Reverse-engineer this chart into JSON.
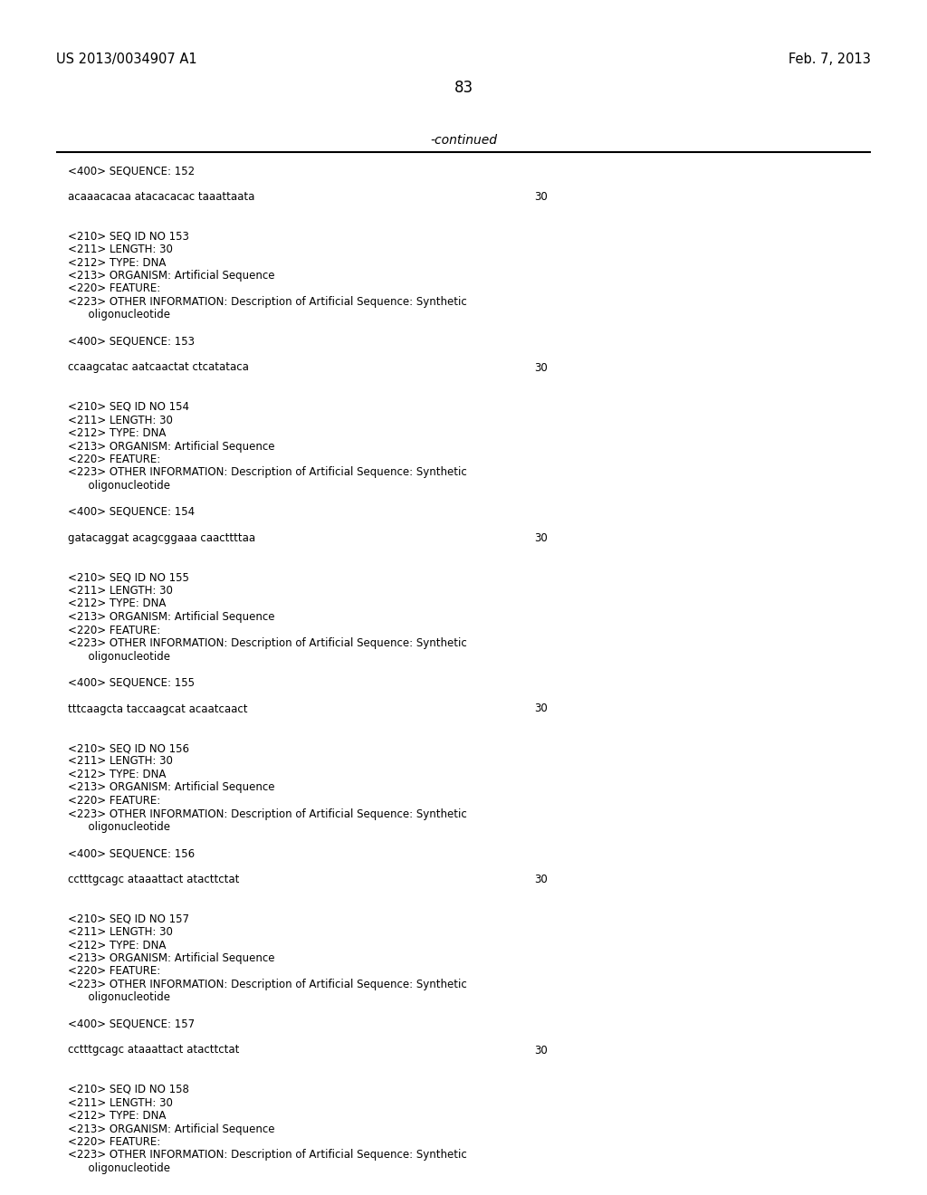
{
  "bg_color": "#ffffff",
  "header_left": "US 2013/0034907 A1",
  "header_right": "Feb. 7, 2013",
  "page_number": "83",
  "continued_label": "-continued",
  "line_color": "#000000",
  "text_color": "#000000",
  "content": [
    {
      "type": "seq400",
      "text": "<400> SEQUENCE: 152"
    },
    {
      "type": "blank"
    },
    {
      "type": "seqdata",
      "text": "acaaacacaa atacacacac taaattaata",
      "num": "30"
    },
    {
      "type": "blank"
    },
    {
      "type": "blank"
    },
    {
      "type": "seq210",
      "text": "<210> SEQ ID NO 153"
    },
    {
      "type": "seq210",
      "text": "<211> LENGTH: 30"
    },
    {
      "type": "seq210",
      "text": "<212> TYPE: DNA"
    },
    {
      "type": "seq210",
      "text": "<213> ORGANISM: Artificial Sequence"
    },
    {
      "type": "seq210",
      "text": "<220> FEATURE:"
    },
    {
      "type": "seq210",
      "text": "<223> OTHER INFORMATION: Description of Artificial Sequence: Synthetic"
    },
    {
      "type": "seq210_indent",
      "text": "      oligonucleotide"
    },
    {
      "type": "blank"
    },
    {
      "type": "seq400",
      "text": "<400> SEQUENCE: 153"
    },
    {
      "type": "blank"
    },
    {
      "type": "seqdata",
      "text": "ccaagcatac aatcaactat ctcatataca",
      "num": "30"
    },
    {
      "type": "blank"
    },
    {
      "type": "blank"
    },
    {
      "type": "seq210",
      "text": "<210> SEQ ID NO 154"
    },
    {
      "type": "seq210",
      "text": "<211> LENGTH: 30"
    },
    {
      "type": "seq210",
      "text": "<212> TYPE: DNA"
    },
    {
      "type": "seq210",
      "text": "<213> ORGANISM: Artificial Sequence"
    },
    {
      "type": "seq210",
      "text": "<220> FEATURE:"
    },
    {
      "type": "seq210",
      "text": "<223> OTHER INFORMATION: Description of Artificial Sequence: Synthetic"
    },
    {
      "type": "seq210_indent",
      "text": "      oligonucleotide"
    },
    {
      "type": "blank"
    },
    {
      "type": "seq400",
      "text": "<400> SEQUENCE: 154"
    },
    {
      "type": "blank"
    },
    {
      "type": "seqdata",
      "text": "gatacaggat acagcggaaa caacttttaa",
      "num": "30"
    },
    {
      "type": "blank"
    },
    {
      "type": "blank"
    },
    {
      "type": "seq210",
      "text": "<210> SEQ ID NO 155"
    },
    {
      "type": "seq210",
      "text": "<211> LENGTH: 30"
    },
    {
      "type": "seq210",
      "text": "<212> TYPE: DNA"
    },
    {
      "type": "seq210",
      "text": "<213> ORGANISM: Artificial Sequence"
    },
    {
      "type": "seq210",
      "text": "<220> FEATURE:"
    },
    {
      "type": "seq210",
      "text": "<223> OTHER INFORMATION: Description of Artificial Sequence: Synthetic"
    },
    {
      "type": "seq210_indent",
      "text": "      oligonucleotide"
    },
    {
      "type": "blank"
    },
    {
      "type": "seq400",
      "text": "<400> SEQUENCE: 155"
    },
    {
      "type": "blank"
    },
    {
      "type": "seqdata",
      "text": "tttcaagcta taccaagcat acaatcaact",
      "num": "30"
    },
    {
      "type": "blank"
    },
    {
      "type": "blank"
    },
    {
      "type": "seq210",
      "text": "<210> SEQ ID NO 156"
    },
    {
      "type": "seq210",
      "text": "<211> LENGTH: 30"
    },
    {
      "type": "seq210",
      "text": "<212> TYPE: DNA"
    },
    {
      "type": "seq210",
      "text": "<213> ORGANISM: Artificial Sequence"
    },
    {
      "type": "seq210",
      "text": "<220> FEATURE:"
    },
    {
      "type": "seq210",
      "text": "<223> OTHER INFORMATION: Description of Artificial Sequence: Synthetic"
    },
    {
      "type": "seq210_indent",
      "text": "      oligonucleotide"
    },
    {
      "type": "blank"
    },
    {
      "type": "seq400",
      "text": "<400> SEQUENCE: 156"
    },
    {
      "type": "blank"
    },
    {
      "type": "seqdata",
      "text": "cctttgcagc ataaattact atacttctat",
      "num": "30"
    },
    {
      "type": "blank"
    },
    {
      "type": "blank"
    },
    {
      "type": "seq210",
      "text": "<210> SEQ ID NO 157"
    },
    {
      "type": "seq210",
      "text": "<211> LENGTH: 30"
    },
    {
      "type": "seq210",
      "text": "<212> TYPE: DNA"
    },
    {
      "type": "seq210",
      "text": "<213> ORGANISM: Artificial Sequence"
    },
    {
      "type": "seq210",
      "text": "<220> FEATURE:"
    },
    {
      "type": "seq210",
      "text": "<223> OTHER INFORMATION: Description of Artificial Sequence: Synthetic"
    },
    {
      "type": "seq210_indent",
      "text": "      oligonucleotide"
    },
    {
      "type": "blank"
    },
    {
      "type": "seq400",
      "text": "<400> SEQUENCE: 157"
    },
    {
      "type": "blank"
    },
    {
      "type": "seqdata",
      "text": "cctttgcagc ataaattact atacttctat",
      "num": "30"
    },
    {
      "type": "blank"
    },
    {
      "type": "blank"
    },
    {
      "type": "seq210",
      "text": "<210> SEQ ID NO 158"
    },
    {
      "type": "seq210",
      "text": "<211> LENGTH: 30"
    },
    {
      "type": "seq210",
      "text": "<212> TYPE: DNA"
    },
    {
      "type": "seq210",
      "text": "<213> ORGANISM: Artificial Sequence"
    },
    {
      "type": "seq210",
      "text": "<220> FEATURE:"
    },
    {
      "type": "seq210",
      "text": "<223> OTHER INFORMATION: Description of Artificial Sequence: Synthetic"
    },
    {
      "type": "seq210_indent",
      "text": "      oligonucleotide"
    }
  ]
}
